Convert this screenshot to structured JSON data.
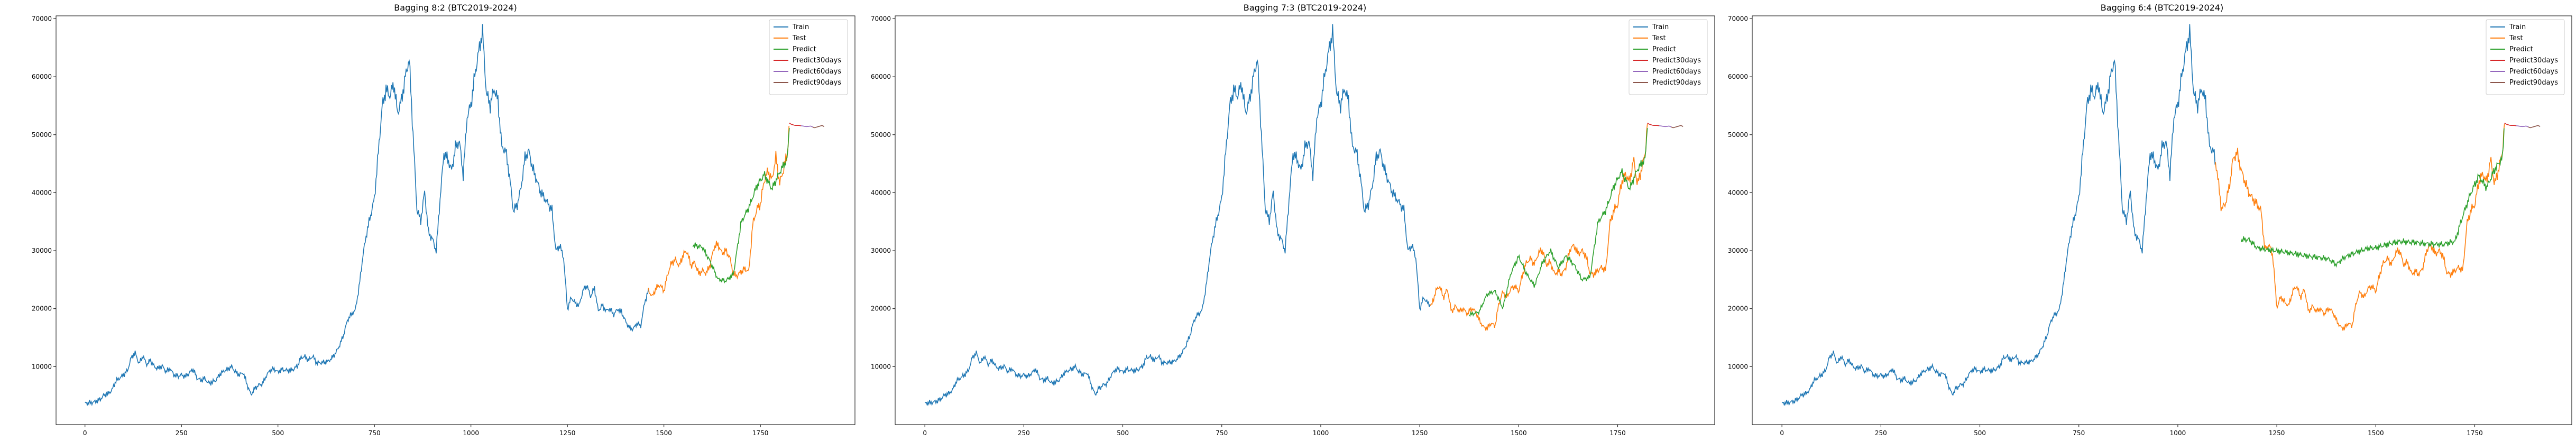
{
  "chart_data": [
    {
      "type": "line",
      "title": "Bagging 8:2 (BTC2019-2024)",
      "split_train_end": 1460,
      "predict_start": 1575,
      "xlim": [
        -75,
        1995
      ],
      "ylim": [
        0,
        70500
      ],
      "xticks": [
        0,
        250,
        500,
        750,
        1000,
        1250,
        1500,
        1750
      ],
      "yticks": [
        10000,
        20000,
        30000,
        40000,
        50000,
        60000,
        70000
      ],
      "legend": [
        "Train",
        "Test",
        "Predict",
        "Predict30days",
        "Predict60days",
        "Predict90days"
      ],
      "legend_position": "top-right",
      "predict_path": {
        "x": [
          1575,
          1600,
          1620,
          1640,
          1660,
          1680,
          1700,
          1720,
          1740,
          1760,
          1780,
          1800,
          1820,
          1825
        ],
        "y": [
          31000,
          30500,
          28000,
          25000,
          24800,
          26000,
          35000,
          37500,
          41000,
          43000,
          40500,
          43500,
          46000,
          52000
        ]
      }
    },
    {
      "type": "line",
      "title": "Bagging 7:3 (BTC2019-2024)",
      "split_train_end": 1277,
      "predict_start": 1375,
      "xlim": [
        -75,
        1995
      ],
      "ylim": [
        0,
        70500
      ],
      "xticks": [
        0,
        250,
        500,
        750,
        1000,
        1250,
        1500,
        1750
      ],
      "yticks": [
        10000,
        20000,
        30000,
        40000,
        50000,
        60000,
        70000
      ],
      "legend": [
        "Train",
        "Test",
        "Predict",
        "Predict30days",
        "Predict60days",
        "Predict90days"
      ],
      "legend_position": "top-right",
      "predict_path": {
        "x": [
          1375,
          1400,
          1420,
          1440,
          1460,
          1480,
          1500,
          1520,
          1540,
          1560,
          1580,
          1600,
          1620,
          1640,
          1660,
          1680,
          1700,
          1720,
          1740,
          1760,
          1780,
          1800,
          1820,
          1825
        ],
        "y": [
          19000,
          19500,
          22500,
          23000,
          20000,
          26000,
          29000,
          26000,
          24000,
          28000,
          30000,
          27000,
          29000,
          27500,
          25000,
          25500,
          35000,
          37000,
          41000,
          43500,
          40500,
          44000,
          46000,
          52000
        ]
      }
    },
    {
      "type": "line",
      "title": "Bagging 6:4 (BTC2019-2024)",
      "split_train_end": 1095,
      "predict_start": 1160,
      "xlim": [
        -75,
        1995
      ],
      "ylim": [
        0,
        70500
      ],
      "xticks": [
        0,
        250,
        500,
        750,
        1000,
        1250,
        1500,
        1750
      ],
      "yticks": [
        10000,
        20000,
        30000,
        40000,
        50000,
        60000,
        70000
      ],
      "legend": [
        "Train",
        "Test",
        "Predict",
        "Predict30days",
        "Predict60days",
        "Predict90days"
      ],
      "legend_position": "top-right",
      "predict_path": {
        "x": [
          1160,
          1180,
          1200,
          1230,
          1260,
          1300,
          1340,
          1380,
          1400,
          1420,
          1450,
          1480,
          1500,
          1530,
          1560,
          1600,
          1640,
          1670,
          1700,
          1720,
          1740,
          1760,
          1780,
          1800,
          1820,
          1825
        ],
        "y": [
          32000,
          32000,
          30500,
          30000,
          29800,
          29500,
          29000,
          28500,
          27500,
          28800,
          29800,
          30500,
          30500,
          31000,
          31500,
          31500,
          31200,
          31000,
          31500,
          36000,
          40000,
          43000,
          41000,
          44000,
          46000,
          52000
        ]
      }
    }
  ],
  "series_colors": {
    "Train": "#1f77b4",
    "Test": "#ff7f0e",
    "Predict": "#2ca02c",
    "Predict30days": "#d62728",
    "Predict60days": "#9467bd",
    "Predict90days": "#8c564b"
  },
  "price_path": {
    "x": [
      0,
      10,
      20,
      30,
      40,
      50,
      60,
      70,
      80,
      90,
      100,
      110,
      120,
      130,
      140,
      150,
      160,
      170,
      180,
      190,
      200,
      210,
      220,
      230,
      240,
      250,
      260,
      270,
      280,
      290,
      300,
      310,
      320,
      330,
      340,
      350,
      360,
      370,
      380,
      390,
      400,
      410,
      420,
      430,
      440,
      450,
      460,
      470,
      480,
      490,
      500,
      510,
      520,
      530,
      540,
      550,
      560,
      570,
      580,
      590,
      600,
      610,
      620,
      630,
      640,
      650,
      660,
      670,
      680,
      690,
      700,
      710,
      720,
      730,
      740,
      750,
      760,
      770,
      780,
      790,
      800,
      810,
      820,
      830,
      840,
      850,
      860,
      870,
      880,
      890,
      900,
      910,
      920,
      930,
      940,
      950,
      960,
      970,
      980,
      990,
      1000,
      1010,
      1020,
      1030,
      1040,
      1050,
      1060,
      1070,
      1080,
      1090,
      1100,
      1110,
      1120,
      1130,
      1140,
      1150,
      1160,
      1170,
      1180,
      1190,
      1200,
      1210,
      1220,
      1230,
      1240,
      1250,
      1260,
      1270,
      1280,
      1290,
      1300,
      1310,
      1320,
      1330,
      1340,
      1350,
      1360,
      1370,
      1380,
      1390,
      1400,
      1410,
      1420,
      1430,
      1440,
      1450,
      1460,
      1470,
      1480,
      1490,
      1500,
      1510,
      1520,
      1530,
      1540,
      1550,
      1560,
      1570,
      1580,
      1590,
      1600,
      1610,
      1620,
      1630,
      1640,
      1650,
      1660,
      1670,
      1680,
      1690,
      1700,
      1710,
      1720,
      1730,
      1740,
      1750,
      1760,
      1770,
      1780,
      1790,
      1800,
      1810,
      1820,
      1825
    ],
    "y": [
      3700,
      3800,
      3900,
      4100,
      4500,
      5200,
      5400,
      6000,
      7500,
      8000,
      8500,
      9200,
      11500,
      12300,
      10500,
      11800,
      10400,
      11200,
      10000,
      9800,
      10200,
      9200,
      9700,
      8600,
      8300,
      8500,
      8200,
      8800,
      9500,
      8000,
      7600,
      8000,
      7200,
      7400,
      7800,
      8800,
      9300,
      9600,
      10000,
      9000,
      8500,
      8900,
      6800,
      5100,
      6200,
      6800,
      7100,
      8500,
      9500,
      9700,
      9100,
      9600,
      9400,
      9300,
      9500,
      10000,
      11500,
      11600,
      11000,
      11800,
      10600,
      10700,
      10800,
      11000,
      11600,
      12500,
      13800,
      15500,
      18000,
      19000,
      19600,
      23500,
      29000,
      33000,
      36000,
      39000,
      47000,
      55000,
      58000,
      57000,
      59000,
      54000,
      56000,
      60000,
      63000,
      50000,
      37000,
      35000,
      40000,
      33000,
      32000,
      30000,
      39000,
      47000,
      46000,
      44000,
      48000,
      49000,
      43000,
      53000,
      55000,
      60000,
      64000,
      67500,
      57000,
      55000,
      58000,
      56000,
      48000,
      47500,
      43000,
      37000,
      38000,
      41000,
      46000,
      47000,
      44000,
      42000,
      40000,
      39000,
      38000,
      37000,
      30000,
      31000,
      29000,
      20000,
      22000,
      21000,
      20500,
      23000,
      24000,
      22000,
      23500,
      19500,
      20500,
      19600,
      20000,
      19000,
      20000,
      19500,
      18000,
      16800,
      16500,
      17500,
      17000,
      21000,
      23000,
      22000,
      23500,
      24000,
      23000,
      26000,
      28000,
      28500,
      27500,
      29500,
      30000,
      27500,
      28000,
      26000,
      26500,
      26000,
      27500,
      30500,
      31000,
      29500,
      30000,
      29000,
      26000,
      25800,
      26500,
      27000,
      26500,
      34500,
      37000,
      38000,
      42000,
      43500,
      42000,
      46000,
      41500,
      44000,
      47000,
      52000
    ]
  },
  "forecast_path": {
    "x": [
      1825,
      1830,
      1840,
      1850,
      1860,
      1870,
      1880,
      1890,
      1900,
      1910,
      1915
    ],
    "y": [
      52000,
      51800,
      51600,
      51600,
      51500,
      51400,
      51500,
      51200,
      51400,
      51600,
      51400
    ]
  }
}
